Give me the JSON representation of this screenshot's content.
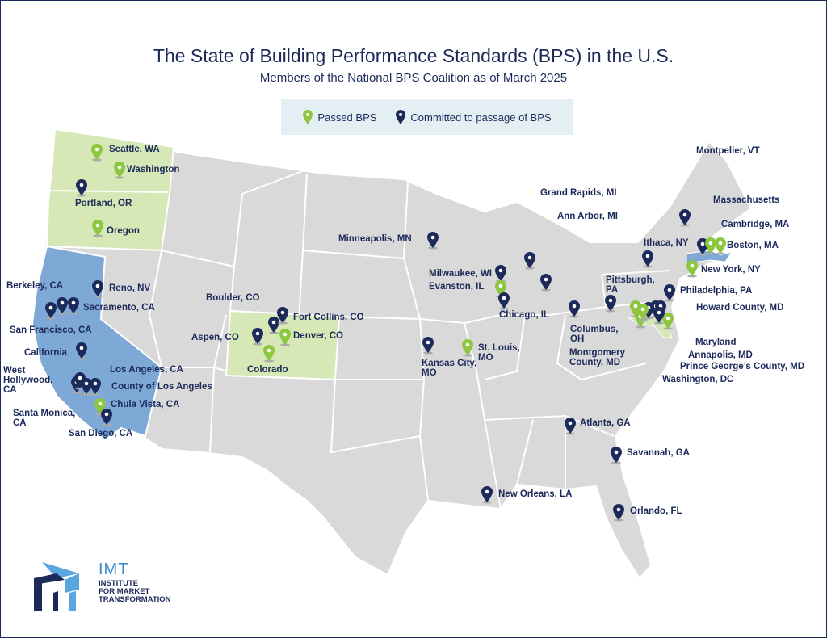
{
  "header": {
    "title": "The State of Building Performance Standards (BPS) in the U.S.",
    "subtitle": "Members of the National BPS Coalition as of March 2025"
  },
  "legend": {
    "passed": {
      "label": "Passed BPS",
      "color": "#8dc63f",
      "icon": "map-pin-icon"
    },
    "committed": {
      "label": "Committed to passage of BPS",
      "color": "#1c2a5a",
      "icon": "map-pin-icon"
    }
  },
  "colors": {
    "land": "#d9d9d9",
    "passed_state": "#d5e8b6",
    "committed_state": "#7ea8d6"
  },
  "states_highlighted": {
    "passed": [
      "Washington",
      "Oregon",
      "Colorado",
      "Maryland"
    ],
    "committed": [
      "California",
      "Massachusetts"
    ]
  },
  "locations": [
    {
      "label": "Seattle, WA",
      "status": "passed"
    },
    {
      "label": "Washington",
      "status": "passed"
    },
    {
      "label": "Portland, OR",
      "status": "committed"
    },
    {
      "label": "Oregon",
      "status": "passed"
    },
    {
      "label": "Berkeley, CA",
      "status": "committed"
    },
    {
      "label": "Reno, NV",
      "status": "committed"
    },
    {
      "label": "Sacramento, CA",
      "status": "committed"
    },
    {
      "label": "San Francisco, CA",
      "status": "committed"
    },
    {
      "label": "California",
      "status": "committed"
    },
    {
      "label": "West\nHollywood,\nCA",
      "status": "committed"
    },
    {
      "label": "Los Angeles, CA",
      "status": "committed"
    },
    {
      "label": "County of Los Angeles",
      "status": "committed"
    },
    {
      "label": "Chula Vista, CA",
      "status": "passed"
    },
    {
      "label": "Santa Monica,\nCA",
      "status": "committed"
    },
    {
      "label": "San Diego, CA",
      "status": "committed"
    },
    {
      "label": "Boulder, CO",
      "status": "committed"
    },
    {
      "label": "Fort Collins, CO",
      "status": "committed"
    },
    {
      "label": "Aspen, CO",
      "status": "committed"
    },
    {
      "label": "Denver, CO",
      "status": "passed"
    },
    {
      "label": "Colorado",
      "status": "passed"
    },
    {
      "label": "Minneapolis, MN",
      "status": "committed"
    },
    {
      "label": "Milwaukee, WI",
      "status": "committed"
    },
    {
      "label": "Evanston, IL",
      "status": "passed"
    },
    {
      "label": "Chicago, IL",
      "status": "committed"
    },
    {
      "label": "Kansas City,\nMO",
      "status": "committed"
    },
    {
      "label": "St. Louis,\nMO",
      "status": "passed"
    },
    {
      "label": "Grand Rapids, MI",
      "status": "committed"
    },
    {
      "label": "Ann Arbor, MI",
      "status": "committed"
    },
    {
      "label": "Columbus,\nOH",
      "status": "committed"
    },
    {
      "label": "Montgomery\nCounty, MD",
      "status": "passed"
    },
    {
      "label": "Pittsburgh,\nPA",
      "status": "committed"
    },
    {
      "label": "Ithaca, NY",
      "status": "committed"
    },
    {
      "label": "Montpelier, VT",
      "status": "committed"
    },
    {
      "label": "Massachusetts",
      "status": "committed"
    },
    {
      "label": "Cambridge, MA",
      "status": "passed"
    },
    {
      "label": "Boston, MA",
      "status": "passed"
    },
    {
      "label": "New York, NY",
      "status": "passed"
    },
    {
      "label": "Philadelphia, PA",
      "status": "committed"
    },
    {
      "label": "Howard County, MD",
      "status": "committed"
    },
    {
      "label": "Maryland",
      "status": "passed"
    },
    {
      "label": "Annapolis, MD",
      "status": "committed"
    },
    {
      "label": "Prince George’s County, MD",
      "status": "committed"
    },
    {
      "label": "Washington, DC",
      "status": "passed"
    },
    {
      "label": "Atlanta, GA",
      "status": "committed"
    },
    {
      "label": "Savannah, GA",
      "status": "committed"
    },
    {
      "label": "New Orleans, LA",
      "status": "committed"
    },
    {
      "label": "Orlando, FL",
      "status": "committed"
    }
  ],
  "logo": {
    "acronym": "IMT",
    "name": "INSTITUTE\nFOR MARKET\nTRANSFORMATION"
  }
}
